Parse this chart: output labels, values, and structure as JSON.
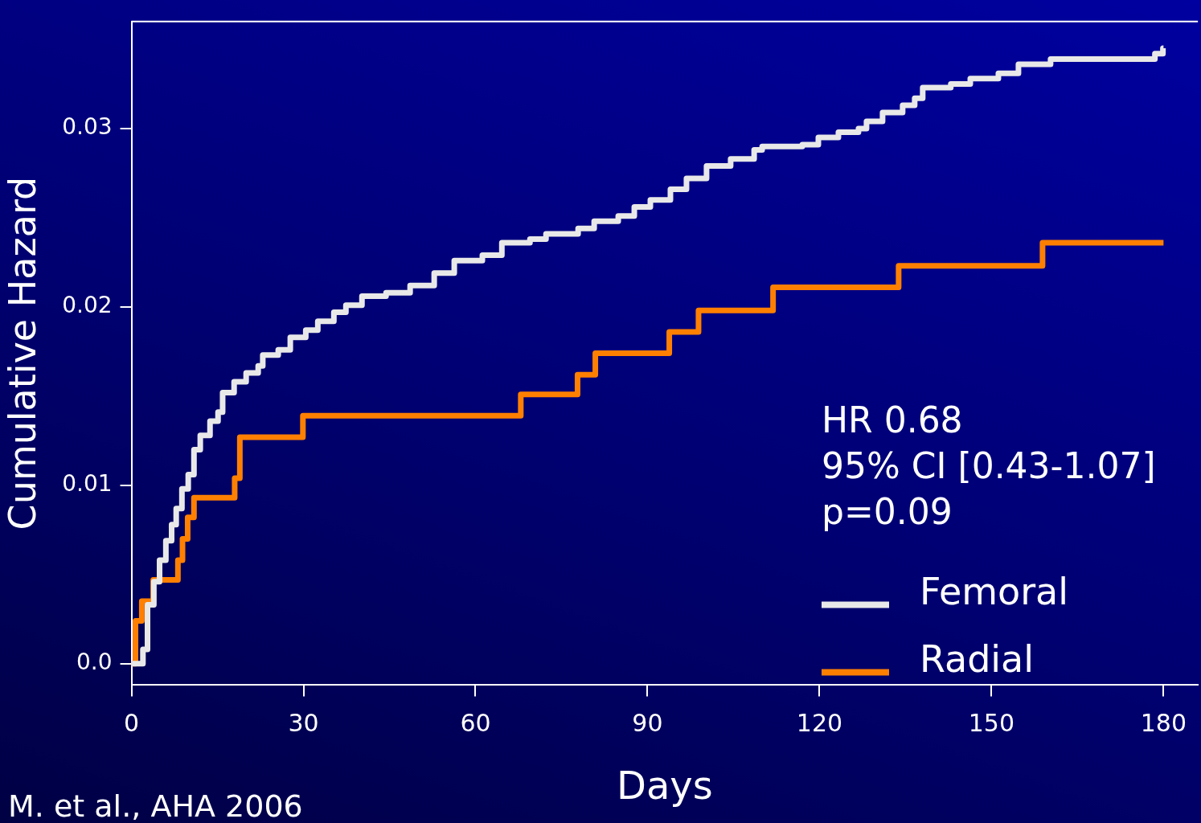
{
  "chart_data": {
    "type": "step",
    "xlabel": "Days",
    "ylabel": "Cumulative Hazard",
    "xlim": [
      0,
      186
    ],
    "xticks": [
      0,
      30,
      60,
      90,
      120,
      150,
      180
    ],
    "ylim": [
      -0.0012,
      0.036
    ],
    "yticks": [
      {
        "value": 0,
        "label": "0.0"
      },
      0.01,
      0.02,
      0.03
    ],
    "grid": false,
    "legend": "bottom right",
    "line_style": "solid",
    "marker": "none",
    "annotations": [
      "HR 0.68",
      "95% CI [0.43-1.07]",
      "p=0.09",
      "M. et al., AHA 2006"
    ],
    "series": [
      {
        "name": "Femoral",
        "color": "#e8e8e8",
        "x": [
          0,
          2.0,
          2.8,
          3.9,
          4.9,
          6.0,
          7.0,
          7.8,
          8.8,
          9.9,
          10.9,
          12.0,
          13.7,
          15.1,
          15.9,
          17.9,
          20.0,
          22.1,
          22.9,
          25.6,
          27.7,
          30.4,
          32.5,
          35.3,
          37.4,
          40.2,
          44.4,
          48.6,
          52.8,
          56.3,
          61.2,
          64.6,
          69.5,
          72.3,
          77.9,
          80.7,
          84.9,
          87.7,
          90.5,
          94.0,
          96.8,
          100.3,
          104.5,
          108.6,
          110.0,
          117.0,
          119.8,
          123.3,
          126.8,
          128.2,
          131.0,
          134.5,
          136.6,
          138.0,
          142.9,
          146.3,
          151.2,
          154.7,
          160.3,
          178.5,
          179.9,
          180
        ],
        "values": [
          0,
          0.0008,
          0.0033,
          0.0046,
          0.0058,
          0.0069,
          0.0078,
          0.0087,
          0.0098,
          0.0106,
          0.012,
          0.0128,
          0.0136,
          0.0141,
          0.0152,
          0.0158,
          0.0163,
          0.0167,
          0.0173,
          0.0176,
          0.0183,
          0.0187,
          0.0192,
          0.0197,
          0.0201,
          0.0206,
          0.0208,
          0.0212,
          0.0219,
          0.0226,
          0.0229,
          0.0236,
          0.0238,
          0.0241,
          0.0244,
          0.0248,
          0.0251,
          0.0256,
          0.026,
          0.0266,
          0.0272,
          0.0279,
          0.0283,
          0.0288,
          0.029,
          0.0291,
          0.0295,
          0.0298,
          0.03,
          0.0304,
          0.0309,
          0.0313,
          0.0317,
          0.0323,
          0.0325,
          0.0328,
          0.0331,
          0.0336,
          0.0339,
          0.0342,
          0.0345,
          0.0345
        ]
      },
      {
        "name": "Radial",
        "color": "#ff8000",
        "x": [
          0,
          0.7,
          1.8,
          3.8,
          8.1,
          8.9,
          9.8,
          10.9,
          18.0,
          18.9,
          29.9,
          67.9,
          77.8,
          80.9,
          93.8,
          98.9,
          111.9,
          133.8,
          158.9,
          180
        ],
        "values": [
          0,
          0.0024,
          0.0035,
          0.0047,
          0.0058,
          0.007,
          0.0082,
          0.0093,
          0.0104,
          0.0127,
          0.0139,
          0.0151,
          0.0162,
          0.0174,
          0.0186,
          0.0198,
          0.0211,
          0.0223,
          0.0236,
          0.0236
        ]
      }
    ]
  }
}
